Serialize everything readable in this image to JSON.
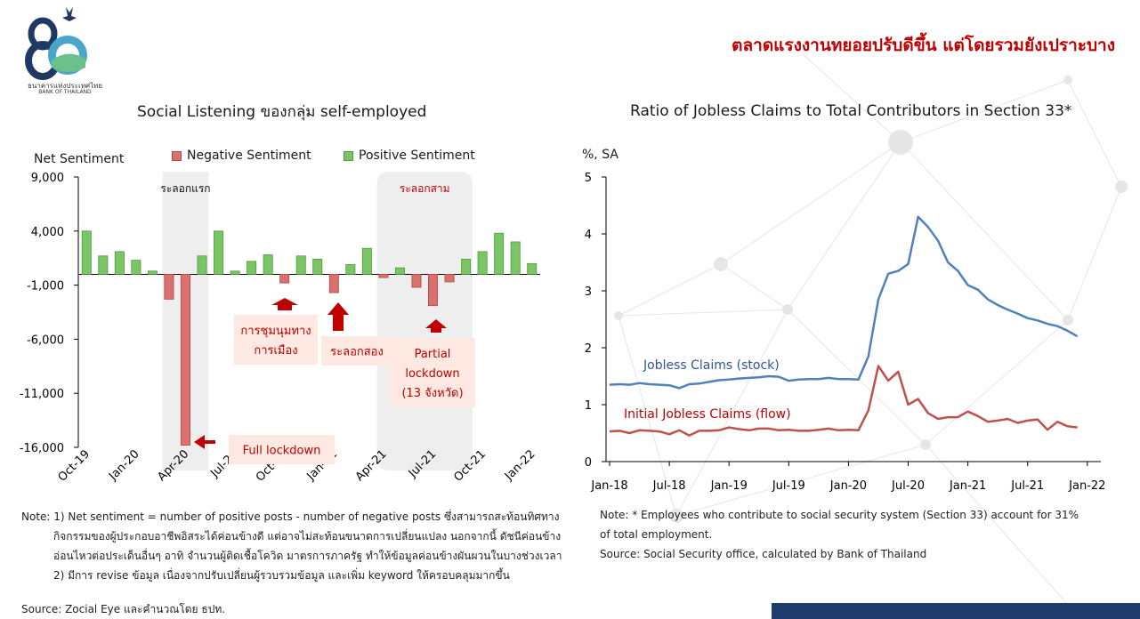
{
  "header": {
    "logo_text": "ธนาคารแห่งประเทศไทย",
    "logo_subtext": "BANK OF THAILAND",
    "logo_number": "80",
    "title_part1": "ตลาดแรงงาน",
    "title_part2": "ทยอยปรับดีขึ้น แต่โดยรวมยังเปราะบาง"
  },
  "left": {
    "title": "Social Listening ของกลุ่ม self-employed",
    "ylabel": "Net Sentiment",
    "legend": [
      {
        "label": "Negative Sentiment",
        "color": "#d9716f"
      },
      {
        "label": "Positive Sentiment",
        "color": "#7bc566"
      }
    ],
    "shade_labels": [
      "ระลอกแรก",
      "ระลอกสาม"
    ],
    "annotations": {
      "rally": "การชุมนุมทาง\nการเมือง",
      "second_wave": "ระลอกสอง",
      "partial": "Partial\nlockdown\n(13 จังหวัด)",
      "full": "Full lockdown"
    },
    "notes": [
      "Note: 1) Net sentiment = number of positive posts - number of negative posts ซึ่งสามารถสะท้อนทิศทาง",
      "กิจกรรมของผู้ประกอบอาชีพอิสระได้ค่อนข้างดี แต่อาจไม่สะท้อนขนาดการเปลี่ยนแปลง นอกจากนี้ ดัชนีค่อนข้าง",
      "อ่อนไหวต่อประเด็นอื่นๆ อาทิ จำนวนผู้ติดเชื้อโควิด มาตรการภาครัฐ ทำให้ข้อมูลค่อนข้างผันผวนในบางช่วงเวลา",
      "2) มีการ revise ข้อมูล เนื่องจากปรับเปลี่ยนผู้รวบรวมข้อมูล และเพิ่ม keyword ให้ครอบคลุมมากขึ้น"
    ],
    "source": "Source: Zocial Eye และคำนวณโดย ธปท."
  },
  "right": {
    "title": "Ratio of Jobless Claims to Total Contributors in Section 33*",
    "ylabel": "%, SA",
    "series_labels": [
      "Jobless Claims (stock)",
      "Initial Jobless Claims (flow)"
    ],
    "notes": [
      "Note: * Employees who contribute to social security system (Section 33) account for 31%",
      "of total employment.",
      "Source: Social Security office, calculated by Bank of Thailand"
    ]
  },
  "chart_data": [
    {
      "type": "bar",
      "title": "Social Listening ของกลุ่ม self-employed",
      "ylabel": "Net Sentiment",
      "ylim": [
        -16000,
        9000
      ],
      "yticks": [
        9000,
        4000,
        -1000,
        -6000,
        -11000,
        -16000
      ],
      "ytick_labels": [
        "9,000",
        "4,000",
        "-1,000",
        "-6,000",
        "-11,000",
        "-16,000"
      ],
      "x_tick_labels": [
        "Oct-19",
        "Jan-20",
        "Apr-20",
        "Jul-20",
        "Oct-20",
        "Jan-21",
        "Apr-21",
        "Jul-21",
        "Oct-21",
        "Jan-22"
      ],
      "categories": [
        "Oct-19",
        "Nov-19",
        "Dec-19",
        "Jan-20",
        "Feb-20",
        "Mar-20",
        "Apr-20",
        "May-20",
        "Jun-20",
        "Jul-20",
        "Aug-20",
        "Sep-20",
        "Oct-20",
        "Nov-20",
        "Dec-20",
        "Jan-21",
        "Feb-21",
        "Mar-21",
        "Apr-21",
        "May-21",
        "Jun-21",
        "Jul-21",
        "Aug-21",
        "Sep-21",
        "Oct-21",
        "Nov-21",
        "Dec-21",
        "Jan-22"
      ],
      "values": [
        4000,
        1700,
        2100,
        1300,
        300,
        -2300,
        -15800,
        1700,
        4000,
        300,
        1200,
        1800,
        -800,
        1700,
        1400,
        -1700,
        900,
        2400,
        -300,
        600,
        -1200,
        -2900,
        -700,
        1400,
        2100,
        3800,
        3000,
        1000
      ],
      "series": [
        {
          "name": "Negative Sentiment",
          "color": "#d9716f"
        },
        {
          "name": "Positive Sentiment",
          "color": "#7bc566"
        }
      ],
      "shaded_periods": [
        {
          "label": "ระลอกแรก",
          "from": "Mar-20",
          "to": "May-20"
        },
        {
          "label": "ระลอกสาม",
          "from": "Apr-21",
          "to": "Sep-21"
        }
      ]
    },
    {
      "type": "line",
      "title": "Ratio of Jobless Claims to Total Contributors in Section 33*",
      "ylabel": "%, SA",
      "ylim": [
        0,
        5
      ],
      "yticks": [
        0,
        1,
        2,
        3,
        4,
        5
      ],
      "x_tick_labels": [
        "Jan-18",
        "Jul-18",
        "Jan-19",
        "Jul-19",
        "Jan-20",
        "Jul-20",
        "Jan-21",
        "Jul-21",
        "Jan-22"
      ],
      "x": [
        "Jan-18",
        "Feb-18",
        "Mar-18",
        "Apr-18",
        "May-18",
        "Jun-18",
        "Jul-18",
        "Aug-18",
        "Sep-18",
        "Oct-18",
        "Nov-18",
        "Dec-18",
        "Jan-19",
        "Feb-19",
        "Mar-19",
        "Apr-19",
        "May-19",
        "Jun-19",
        "Jul-19",
        "Aug-19",
        "Sep-19",
        "Oct-19",
        "Nov-19",
        "Dec-19",
        "Jan-20",
        "Feb-20",
        "Mar-20",
        "Apr-20",
        "May-20",
        "Jun-20",
        "Jul-20",
        "Aug-20",
        "Sep-20",
        "Oct-20",
        "Nov-20",
        "Dec-20",
        "Jan-21",
        "Feb-21",
        "Mar-21",
        "Apr-21",
        "May-21",
        "Jun-21",
        "Jul-21",
        "Aug-21",
        "Sep-21",
        "Oct-21",
        "Nov-21",
        "Dec-21",
        "Jan-22",
        "Feb-22"
      ],
      "series": [
        {
          "name": "Jobless Claims (stock)",
          "color": "#4f81bd",
          "values": [
            1.35,
            1.36,
            1.35,
            1.38,
            1.36,
            1.35,
            1.34,
            1.29,
            1.36,
            1.37,
            1.4,
            1.43,
            1.44,
            1.46,
            1.47,
            1.48,
            1.5,
            1.49,
            1.42,
            1.44,
            1.45,
            1.45,
            1.47,
            1.45,
            1.45,
            1.44,
            1.85,
            2.85,
            3.3,
            3.35,
            3.47,
            4.3,
            4.12,
            3.88,
            3.5,
            3.35,
            3.1,
            3.02,
            2.85,
            2.75,
            2.67,
            2.6,
            2.52,
            2.48,
            2.42,
            2.38,
            2.3,
            2.2,
            null,
            null
          ]
        },
        {
          "name": "Initial Jobless Claims (flow)",
          "color": "#c0504d",
          "values": [
            0.53,
            0.54,
            0.5,
            0.55,
            0.54,
            0.53,
            0.48,
            0.55,
            0.46,
            0.54,
            0.54,
            0.55,
            0.6,
            0.57,
            0.55,
            0.58,
            0.58,
            0.55,
            0.56,
            0.54,
            0.54,
            0.56,
            0.58,
            0.55,
            0.56,
            0.55,
            0.9,
            1.68,
            1.42,
            1.58,
            1.0,
            1.1,
            0.85,
            0.75,
            0.78,
            0.78,
            0.88,
            0.8,
            0.7,
            0.72,
            0.75,
            0.68,
            0.72,
            0.74,
            0.56,
            0.7,
            0.62,
            0.6,
            null,
            null
          ]
        }
      ]
    }
  ]
}
